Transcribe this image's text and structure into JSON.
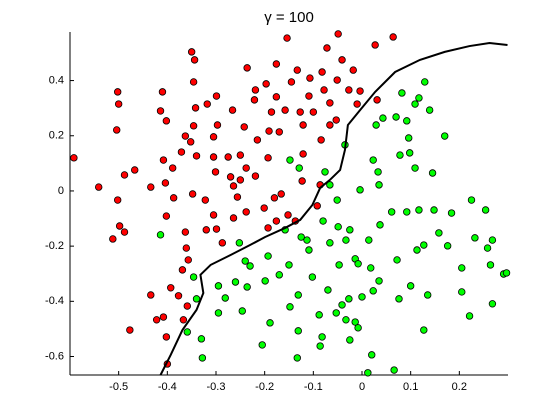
{
  "chart_data": {
    "type": "scatter",
    "title": "γ = 100",
    "xlim": [
      -0.6,
      0.3
    ],
    "ylim": [
      -0.667,
      0.576
    ],
    "xticks": [
      -0.5,
      -0.4,
      -0.3,
      -0.2,
      -0.1,
      0,
      0.1,
      0.2
    ],
    "yticks": [
      -0.6,
      -0.4,
      -0.2,
      0,
      0.2,
      0.4
    ],
    "series": [
      {
        "type": "scatter",
        "color": "#ff0000",
        "x": [
          -0.592,
          -0.502,
          -0.5,
          -0.504,
          -0.541,
          -0.488,
          -0.512,
          -0.498,
          -0.488,
          -0.467,
          -0.434,
          -0.502,
          -0.41,
          -0.414,
          -0.402,
          -0.408,
          -0.404,
          -0.389,
          -0.363,
          -0.371,
          -0.344,
          -0.346,
          -0.342,
          -0.346,
          -0.352,
          -0.34,
          -0.348,
          -0.322,
          -0.318,
          -0.299,
          -0.297,
          -0.305,
          -0.305,
          -0.301,
          -0.305,
          -0.32,
          -0.363,
          -0.361,
          -0.357,
          -0.402,
          -0.387,
          -0.369,
          -0.377,
          -0.434,
          -0.408,
          -0.393,
          -0.422,
          -0.477,
          -0.402,
          -0.4,
          -0.367,
          -0.359,
          -0.275,
          -0.27,
          -0.264,
          -0.25,
          -0.238,
          -0.256,
          -0.238,
          -0.264,
          -0.266,
          -0.242,
          -0.236,
          -0.219,
          -0.215,
          -0.191,
          -0.193,
          -0.219,
          -0.201,
          -0.18,
          -0.166,
          -0.176,
          -0.193,
          -0.137,
          -0.152,
          -0.197,
          -0.186,
          -0.176,
          -0.17,
          -0.176,
          -0.154,
          -0.145,
          -0.133,
          -0.127,
          -0.121,
          -0.121,
          -0.123,
          -0.086,
          -0.092,
          -0.158,
          -0.1,
          -0.072,
          -0.082,
          -0.078,
          -0.084,
          -0.107,
          -0.051,
          -0.049,
          -0.041,
          -0.018,
          -0.01,
          -0.053,
          -0.066,
          -0.027,
          0.027,
          0.064,
          0.031,
          -0.004,
          -0.066,
          -0.109,
          -0.221,
          -0.25,
          -0.287,
          -0.299,
          -0.35
        ],
        "values": [
          0.12,
          0.359,
          0.315,
          0.221,
          0.014,
          0.058,
          -0.174,
          -0.127,
          -0.149,
          0.076,
          0.014,
          -0.033,
          0.359,
          0.29,
          0.254,
          0.112,
          0.029,
          0.083,
          0.199,
          0.141,
          0.475,
          0.395,
          0.301,
          0.236,
          0.178,
          0.127,
          -0.011,
          -0.033,
          0.315,
          0.344,
          0.239,
          0.196,
          0.123,
          0.069,
          -0.087,
          -0.141,
          -0.149,
          -0.207,
          -0.25,
          -0.091,
          -0.025,
          -0.286,
          -0.38,
          -0.377,
          -0.457,
          -0.351,
          -0.467,
          -0.504,
          -0.529,
          -0.627,
          -0.467,
          -0.417,
          0.123,
          0.051,
          0.018,
          0.04,
          0.083,
          -0.022,
          -0.076,
          -0.098,
          0.293,
          0.232,
          0.446,
          0.366,
          0.185,
          0.217,
          0.12,
          0.054,
          -0.062,
          -0.025,
          -0.011,
          -0.109,
          -0.134,
          -0.109,
          -0.087,
          0.388,
          0.286,
          0.341,
          0.214,
          0.46,
          0.554,
          0.395,
          0.438,
          0.286,
          0.239,
          0.134,
          0.036,
          0.022,
          -0.054,
          0.293,
          0.286,
          0.518,
          0.431,
          0.366,
          0.185,
          0.409,
          0.402,
          0.569,
          0.475,
          0.438,
          0.315,
          0.257,
          0.239,
          0.366,
          0.529,
          0.558,
          0.33,
          0.362,
          0.319,
          0.344,
          0.33,
          0.13,
          -0.188,
          -0.138,
          0.504
        ]
      },
      {
        "type": "scatter",
        "color": "#00ff00",
        "x": [
          -0.414,
          -0.346,
          -0.34,
          -0.359,
          -0.33,
          -0.328,
          -0.281,
          -0.295,
          -0.295,
          -0.252,
          -0.24,
          -0.23,
          -0.26,
          -0.246,
          -0.236,
          -0.199,
          -0.17,
          -0.193,
          -0.189,
          -0.205,
          -0.15,
          -0.158,
          -0.148,
          -0.129,
          -0.125,
          -0.109,
          -0.148,
          -0.131,
          -0.133,
          -0.088,
          -0.082,
          -0.086,
          -0.102,
          -0.113,
          -0.066,
          -0.08,
          -0.066,
          -0.076,
          -0.035,
          -0.049,
          -0.033,
          -0.047,
          -0.027,
          -0.041,
          -0.033,
          -0.014,
          -0.008,
          -0.025,
          0,
          0.012,
          0.018,
          0.014,
          0.023,
          0.029,
          0.033,
          0.035,
          0.043,
          0.07,
          0.082,
          0.129,
          0.109,
          0.117,
          0.092,
          0.096,
          0.078,
          0.109,
          0.145,
          0.061,
          0.092,
          0.117,
          0.148,
          0.158,
          0.176,
          0.184,
          0.225,
          0.254,
          0.232,
          0.268,
          0.258,
          0.264,
          0.205,
          0.205,
          0.135,
          0.127,
          0.221,
          0.268,
          0.291,
          0.297,
          0.1,
          0.127,
          0.072,
          0.076,
          0.035,
          0.023,
          -0.014,
          -0.008,
          -0.051,
          -0.004,
          0.066,
          0.02,
          0.113,
          0.037,
          -0.053,
          0.098,
          0.17,
          0.139,
          -0.025,
          -0.131,
          -0.07
        ],
        "values": [
          -0.159,
          -0.312,
          -0.391,
          -0.511,
          -0.536,
          -0.605,
          -0.388,
          -0.442,
          -0.344,
          -0.188,
          -0.254,
          -0.272,
          -0.33,
          -0.435,
          -0.348,
          -0.326,
          -0.304,
          -0.236,
          -0.478,
          -0.558,
          -0.268,
          -0.141,
          0.112,
          0.083,
          -0.167,
          -0.214,
          -0.42,
          -0.507,
          -0.605,
          -0.449,
          -0.529,
          -0.562,
          -0.312,
          -0.178,
          -0.188,
          -0.109,
          0.022,
          0.069,
          0.167,
          -0.13,
          -0.178,
          -0.268,
          -0.391,
          -0.413,
          -0.467,
          -0.475,
          -0.496,
          -0.54,
          -0.384,
          -0.659,
          -0.279,
          -0.178,
          0.112,
          0.239,
          0.069,
          0.022,
          0.264,
          0.268,
          0.355,
          0.395,
          0.315,
          0.337,
          0.254,
          0.192,
          0.13,
          0.083,
          0.065,
          -0.076,
          -0.076,
          -0.069,
          -0.069,
          -0.152,
          -0.199,
          -0.08,
          -0.033,
          -0.069,
          -0.17,
          -0.178,
          -0.207,
          -0.268,
          -0.279,
          -0.366,
          -0.377,
          -0.504,
          -0.453,
          -0.409,
          -0.301,
          -0.297,
          -0.344,
          -0.196,
          -0.25,
          -0.391,
          -0.326,
          -0.362,
          -0.246,
          -0.264,
          -0.033,
          0.004,
          -0.649,
          -0.594,
          -0.214,
          -0.123,
          -0.442,
          0.138,
          0.199,
          0.293,
          -0.141,
          -0.377,
          -0.359
        ]
      },
      {
        "type": "line",
        "color": "#000000",
        "x": [
          -0.414,
          -0.393,
          -0.369,
          -0.34,
          -0.326,
          -0.332,
          -0.311,
          -0.27,
          -0.23,
          -0.199,
          -0.158,
          -0.127,
          -0.102,
          -0.086,
          -0.066,
          -0.045,
          -0.035,
          -0.029,
          -0.004,
          0.027,
          0.068,
          0.119,
          0.17,
          0.221,
          0.262,
          0.299
        ],
        "values": [
          -0.667,
          -0.594,
          -0.504,
          -0.431,
          -0.37,
          -0.304,
          -0.268,
          -0.232,
          -0.196,
          -0.167,
          -0.134,
          -0.105,
          -0.051,
          0.011,
          0.04,
          0.076,
          0.149,
          0.239,
          0.293,
          0.359,
          0.431,
          0.475,
          0.504,
          0.525,
          0.536,
          0.529
        ]
      }
    ]
  }
}
